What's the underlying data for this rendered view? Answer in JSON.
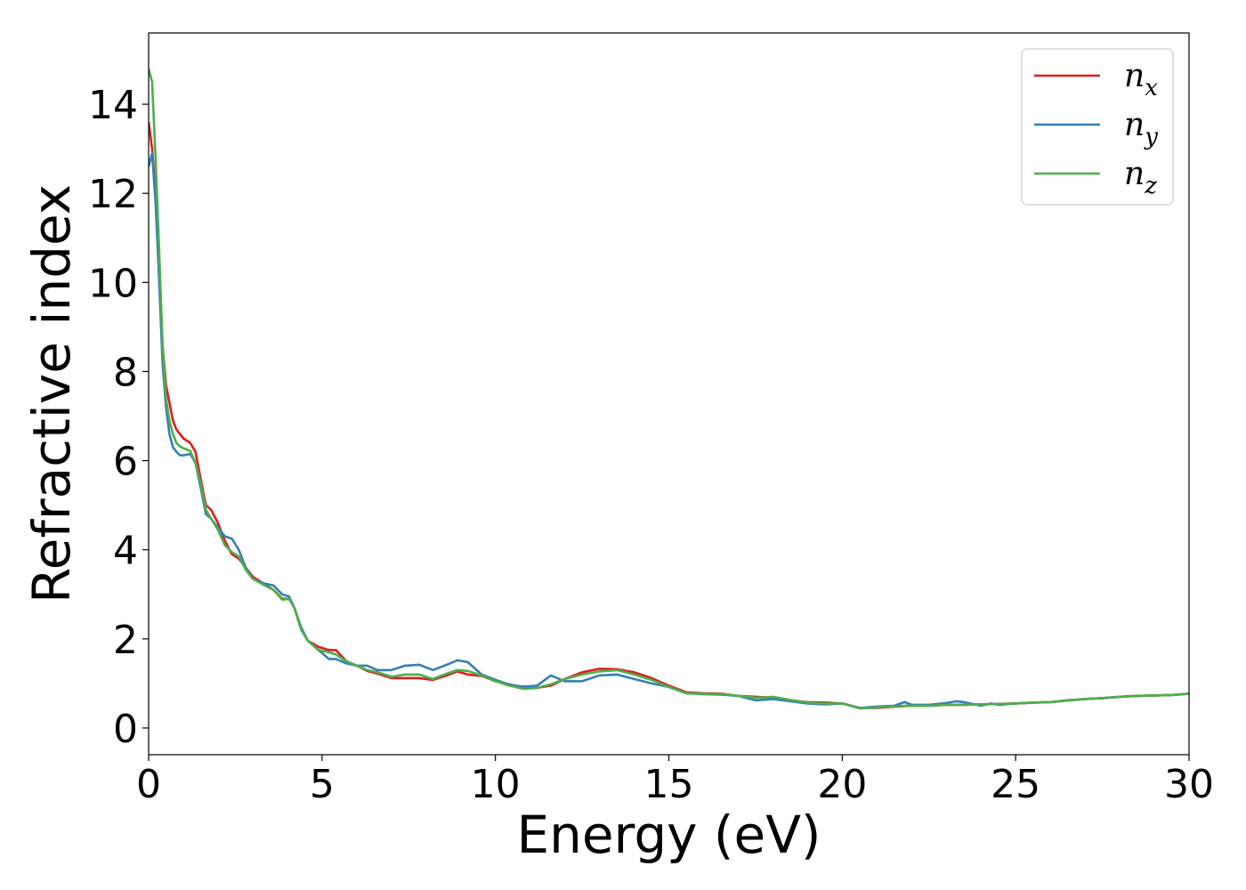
{
  "chart_data": {
    "type": "line",
    "xlabel": "Energy (eV)",
    "ylabel": "Refractive index",
    "xlim": [
      0,
      30
    ],
    "ylim": [
      -0.6,
      15.6
    ],
    "xticks": [
      0,
      5,
      10,
      15,
      20,
      25,
      30
    ],
    "yticks": [
      0,
      2,
      4,
      6,
      8,
      10,
      12,
      14
    ],
    "grid": false,
    "legend_position": "top-right",
    "series": [
      {
        "name": "n_x",
        "legend_base": "n",
        "legend_sub": "x",
        "color": "#e41a1c",
        "points": [
          [
            0,
            13.6
          ],
          [
            0.1,
            13.0
          ],
          [
            0.2,
            12.0
          ],
          [
            0.3,
            10.5
          ],
          [
            0.4,
            8.6
          ],
          [
            0.5,
            7.7
          ],
          [
            0.6,
            7.3
          ],
          [
            0.7,
            6.9
          ],
          [
            0.8,
            6.7
          ],
          [
            0.9,
            6.6
          ],
          [
            1.0,
            6.5
          ],
          [
            1.2,
            6.4
          ],
          [
            1.35,
            6.2
          ],
          [
            1.5,
            5.6
          ],
          [
            1.65,
            5.0
          ],
          [
            1.8,
            4.9
          ],
          [
            2.0,
            4.6
          ],
          [
            2.2,
            4.2
          ],
          [
            2.4,
            3.9
          ],
          [
            2.6,
            3.8
          ],
          [
            2.8,
            3.6
          ],
          [
            3.0,
            3.4
          ],
          [
            3.3,
            3.25
          ],
          [
            3.6,
            3.1
          ],
          [
            3.85,
            2.9
          ],
          [
            4.05,
            2.9
          ],
          [
            4.2,
            2.7
          ],
          [
            4.4,
            2.2
          ],
          [
            4.6,
            1.95
          ],
          [
            4.9,
            1.82
          ],
          [
            5.2,
            1.75
          ],
          [
            5.4,
            1.75
          ],
          [
            5.7,
            1.5
          ],
          [
            6.0,
            1.4
          ],
          [
            6.3,
            1.28
          ],
          [
            6.6,
            1.22
          ],
          [
            7.0,
            1.12
          ],
          [
            7.4,
            1.12
          ],
          [
            7.8,
            1.12
          ],
          [
            8.2,
            1.08
          ],
          [
            8.6,
            1.18
          ],
          [
            8.9,
            1.27
          ],
          [
            9.2,
            1.2
          ],
          [
            9.6,
            1.17
          ],
          [
            10.0,
            1.05
          ],
          [
            10.4,
            0.98
          ],
          [
            10.8,
            0.9
          ],
          [
            11.2,
            0.9
          ],
          [
            11.6,
            0.95
          ],
          [
            12.0,
            1.1
          ],
          [
            12.5,
            1.25
          ],
          [
            13.0,
            1.33
          ],
          [
            13.5,
            1.32
          ],
          [
            14.0,
            1.25
          ],
          [
            14.5,
            1.12
          ],
          [
            15.0,
            0.95
          ],
          [
            15.5,
            0.8
          ],
          [
            16.0,
            0.78
          ],
          [
            16.5,
            0.77
          ],
          [
            17.0,
            0.72
          ],
          [
            17.5,
            0.7
          ],
          [
            18.0,
            0.68
          ],
          [
            18.5,
            0.62
          ],
          [
            19.0,
            0.58
          ],
          [
            19.5,
            0.57
          ],
          [
            20.0,
            0.55
          ],
          [
            20.5,
            0.45
          ],
          [
            21.0,
            0.45
          ],
          [
            21.5,
            0.48
          ],
          [
            22.0,
            0.5
          ],
          [
            22.5,
            0.5
          ],
          [
            23.0,
            0.52
          ],
          [
            23.5,
            0.52
          ],
          [
            24.0,
            0.53
          ],
          [
            24.5,
            0.54
          ],
          [
            25.0,
            0.55
          ],
          [
            25.5,
            0.57
          ],
          [
            26.0,
            0.58
          ],
          [
            26.5,
            0.62
          ],
          [
            27.0,
            0.65
          ],
          [
            27.5,
            0.67
          ],
          [
            28.0,
            0.7
          ],
          [
            28.5,
            0.72
          ],
          [
            29.0,
            0.73
          ],
          [
            29.5,
            0.74
          ],
          [
            30.0,
            0.77
          ]
        ]
      },
      {
        "name": "n_y",
        "legend_base": "n",
        "legend_sub": "y",
        "color": "#377eb8",
        "points": [
          [
            0,
            12.6
          ],
          [
            0.1,
            12.9
          ],
          [
            0.2,
            11.8
          ],
          [
            0.3,
            10.1
          ],
          [
            0.4,
            8.2
          ],
          [
            0.5,
            7.2
          ],
          [
            0.6,
            6.6
          ],
          [
            0.7,
            6.3
          ],
          [
            0.8,
            6.2
          ],
          [
            0.9,
            6.12
          ],
          [
            1.0,
            6.12
          ],
          [
            1.2,
            6.15
          ],
          [
            1.35,
            5.95
          ],
          [
            1.5,
            5.4
          ],
          [
            1.65,
            4.8
          ],
          [
            1.8,
            4.7
          ],
          [
            2.0,
            4.5
          ],
          [
            2.2,
            4.3
          ],
          [
            2.4,
            4.25
          ],
          [
            2.6,
            4.0
          ],
          [
            2.8,
            3.6
          ],
          [
            3.0,
            3.35
          ],
          [
            3.3,
            3.25
          ],
          [
            3.6,
            3.2
          ],
          [
            3.85,
            3.0
          ],
          [
            4.05,
            2.95
          ],
          [
            4.2,
            2.7
          ],
          [
            4.4,
            2.25
          ],
          [
            4.6,
            1.95
          ],
          [
            4.9,
            1.75
          ],
          [
            5.2,
            1.55
          ],
          [
            5.4,
            1.55
          ],
          [
            5.7,
            1.45
          ],
          [
            6.0,
            1.4
          ],
          [
            6.3,
            1.4
          ],
          [
            6.6,
            1.3
          ],
          [
            7.0,
            1.3
          ],
          [
            7.4,
            1.4
          ],
          [
            7.8,
            1.42
          ],
          [
            8.2,
            1.3
          ],
          [
            8.6,
            1.42
          ],
          [
            8.9,
            1.52
          ],
          [
            9.2,
            1.48
          ],
          [
            9.6,
            1.2
          ],
          [
            10.0,
            1.08
          ],
          [
            10.4,
            0.97
          ],
          [
            10.8,
            0.93
          ],
          [
            11.2,
            0.95
          ],
          [
            11.6,
            1.18
          ],
          [
            12.0,
            1.05
          ],
          [
            12.5,
            1.05
          ],
          [
            13.0,
            1.18
          ],
          [
            13.5,
            1.2
          ],
          [
            14.0,
            1.1
          ],
          [
            14.5,
            1.0
          ],
          [
            15.0,
            0.92
          ],
          [
            15.5,
            0.78
          ],
          [
            16.0,
            0.76
          ],
          [
            16.5,
            0.75
          ],
          [
            17.0,
            0.72
          ],
          [
            17.5,
            0.62
          ],
          [
            18.0,
            0.65
          ],
          [
            18.5,
            0.6
          ],
          [
            19.0,
            0.55
          ],
          [
            19.5,
            0.53
          ],
          [
            20.0,
            0.55
          ],
          [
            20.5,
            0.45
          ],
          [
            21.0,
            0.48
          ],
          [
            21.5,
            0.5
          ],
          [
            21.8,
            0.58
          ],
          [
            22.0,
            0.52
          ],
          [
            22.5,
            0.52
          ],
          [
            23.0,
            0.56
          ],
          [
            23.3,
            0.6
          ],
          [
            23.5,
            0.58
          ],
          [
            24.0,
            0.5
          ],
          [
            24.3,
            0.55
          ],
          [
            24.5,
            0.52
          ],
          [
            25.0,
            0.55
          ],
          [
            25.5,
            0.57
          ],
          [
            26.0,
            0.58
          ],
          [
            26.5,
            0.62
          ],
          [
            27.0,
            0.65
          ],
          [
            27.5,
            0.67
          ],
          [
            28.0,
            0.7
          ],
          [
            28.5,
            0.72
          ],
          [
            29.0,
            0.73
          ],
          [
            29.5,
            0.74
          ],
          [
            30.0,
            0.77
          ]
        ]
      },
      {
        "name": "n_z",
        "legend_base": "n",
        "legend_sub": "z",
        "color": "#4daf4a",
        "points": [
          [
            0,
            14.8
          ],
          [
            0.1,
            14.5
          ],
          [
            0.2,
            12.8
          ],
          [
            0.3,
            10.8
          ],
          [
            0.4,
            8.6
          ],
          [
            0.5,
            7.4
          ],
          [
            0.6,
            6.9
          ],
          [
            0.7,
            6.6
          ],
          [
            0.8,
            6.4
          ],
          [
            0.9,
            6.32
          ],
          [
            1.0,
            6.28
          ],
          [
            1.2,
            6.22
          ],
          [
            1.35,
            5.95
          ],
          [
            1.5,
            5.5
          ],
          [
            1.65,
            4.9
          ],
          [
            1.8,
            4.7
          ],
          [
            2.0,
            4.45
          ],
          [
            2.2,
            4.1
          ],
          [
            2.4,
            3.95
          ],
          [
            2.6,
            3.85
          ],
          [
            2.8,
            3.55
          ],
          [
            3.0,
            3.35
          ],
          [
            3.3,
            3.22
          ],
          [
            3.6,
            3.1
          ],
          [
            3.85,
            2.88
          ],
          [
            4.05,
            2.9
          ],
          [
            4.2,
            2.7
          ],
          [
            4.4,
            2.2
          ],
          [
            4.6,
            1.95
          ],
          [
            4.9,
            1.75
          ],
          [
            5.2,
            1.7
          ],
          [
            5.4,
            1.65
          ],
          [
            5.7,
            1.5
          ],
          [
            6.0,
            1.4
          ],
          [
            6.3,
            1.3
          ],
          [
            6.6,
            1.25
          ],
          [
            7.0,
            1.15
          ],
          [
            7.4,
            1.2
          ],
          [
            7.8,
            1.2
          ],
          [
            8.2,
            1.1
          ],
          [
            8.6,
            1.22
          ],
          [
            8.9,
            1.3
          ],
          [
            9.2,
            1.28
          ],
          [
            9.6,
            1.18
          ],
          [
            10.0,
            1.05
          ],
          [
            10.4,
            0.95
          ],
          [
            10.8,
            0.88
          ],
          [
            11.2,
            0.9
          ],
          [
            11.6,
            0.98
          ],
          [
            12.0,
            1.1
          ],
          [
            12.5,
            1.2
          ],
          [
            13.0,
            1.27
          ],
          [
            13.5,
            1.3
          ],
          [
            14.0,
            1.2
          ],
          [
            14.5,
            1.08
          ],
          [
            15.0,
            0.92
          ],
          [
            15.5,
            0.78
          ],
          [
            16.0,
            0.77
          ],
          [
            16.5,
            0.76
          ],
          [
            17.0,
            0.72
          ],
          [
            17.5,
            0.68
          ],
          [
            18.0,
            0.7
          ],
          [
            18.5,
            0.63
          ],
          [
            19.0,
            0.57
          ],
          [
            19.5,
            0.55
          ],
          [
            20.0,
            0.55
          ],
          [
            20.5,
            0.44
          ],
          [
            21.0,
            0.46
          ],
          [
            21.5,
            0.49
          ],
          [
            22.0,
            0.5
          ],
          [
            22.5,
            0.5
          ],
          [
            23.0,
            0.52
          ],
          [
            23.5,
            0.52
          ],
          [
            24.0,
            0.53
          ],
          [
            24.5,
            0.54
          ],
          [
            25.0,
            0.55
          ],
          [
            25.5,
            0.57
          ],
          [
            26.0,
            0.58
          ],
          [
            26.5,
            0.62
          ],
          [
            27.0,
            0.65
          ],
          [
            27.5,
            0.67
          ],
          [
            28.0,
            0.7
          ],
          [
            28.5,
            0.72
          ],
          [
            29.0,
            0.73
          ],
          [
            29.5,
            0.74
          ],
          [
            30.0,
            0.77
          ]
        ]
      }
    ]
  }
}
